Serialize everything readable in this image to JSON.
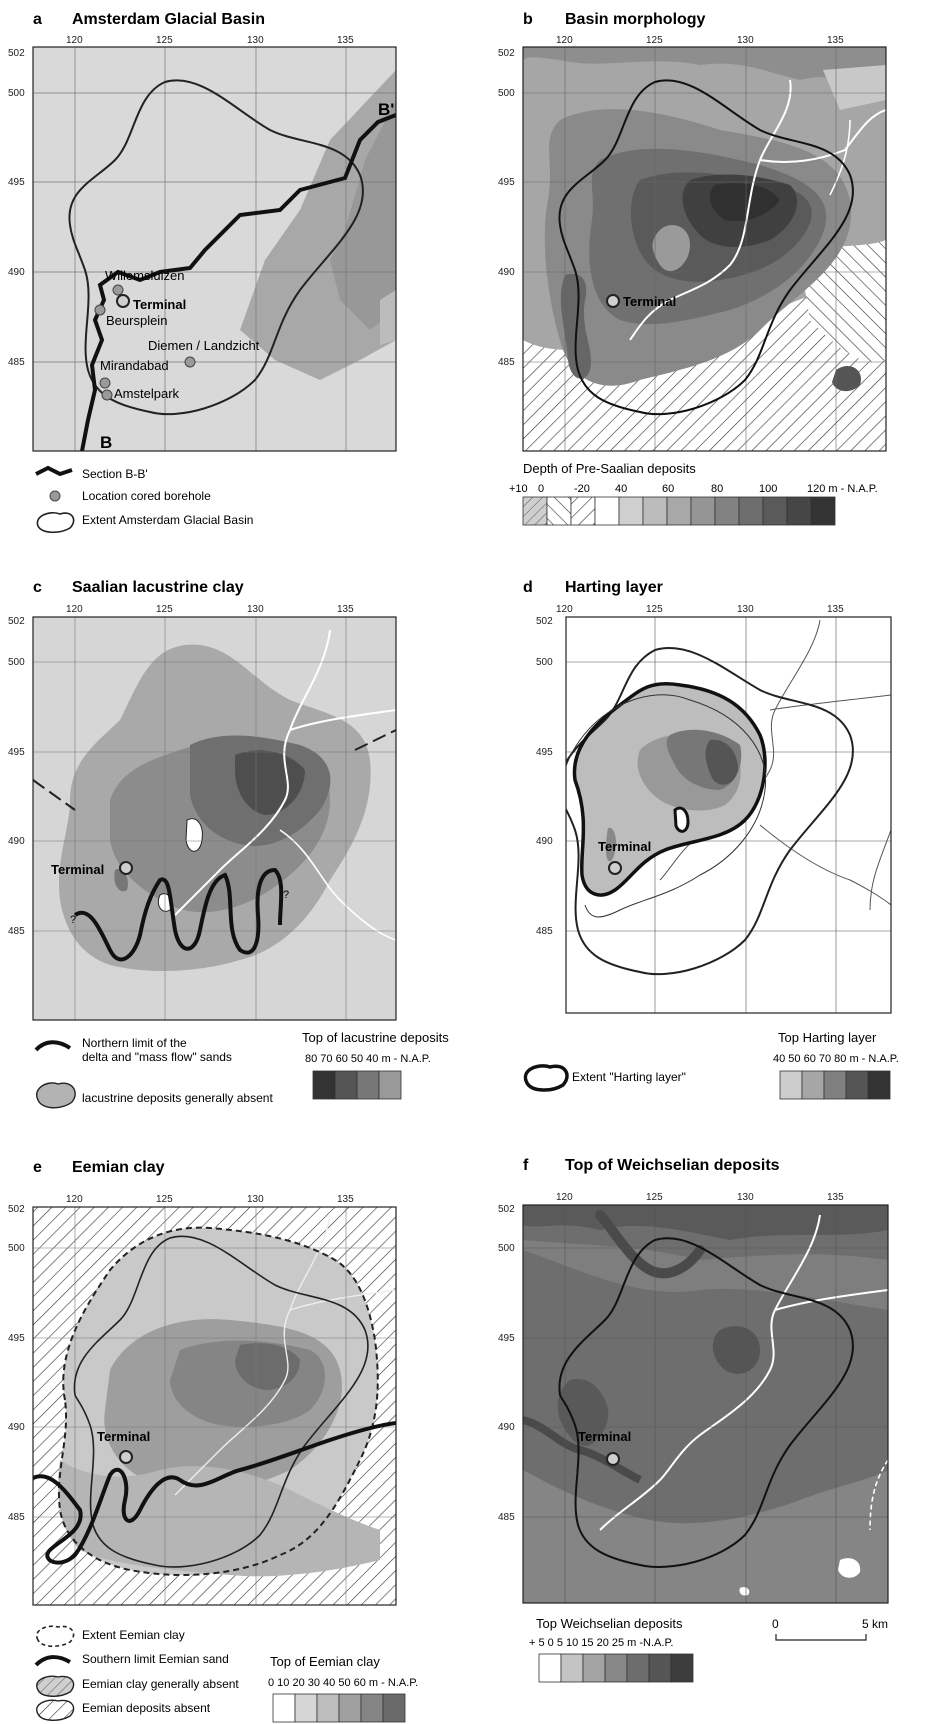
{
  "panels": {
    "a": {
      "letter": "a",
      "title": "Amsterdam Glacial Basin",
      "places": [
        "Willemsluizen",
        "Terminal",
        "Beursplein",
        "Diemen / Landzicht",
        "Mirandabad",
        "Amstelpark"
      ],
      "section_labels": [
        "B'",
        "B"
      ],
      "legend": [
        "Section B-B'",
        "Location cored borehole",
        "Extent Amsterdam Glacial Basin"
      ]
    },
    "b": {
      "letter": "b",
      "title": "Basin morphology",
      "places": [
        "Terminal"
      ],
      "legend_title": "Depth of Pre-Saalian deposits",
      "scale_labels": [
        "+10",
        "0",
        "-20",
        "40",
        "60",
        "80",
        "100",
        "120 m - N.A.P."
      ]
    },
    "c": {
      "letter": "c",
      "title": "Saalian lacustrine clay",
      "places": [
        "Terminal"
      ],
      "question_marks": [
        "?",
        "?"
      ],
      "legend": [
        "Northern limit of the",
        "delta and \"mass flow\" sands",
        "lacustrine deposits generally absent"
      ],
      "legend_title": "Top of lacustrine deposits",
      "scale_labels": "80 70 60 50 40 m - N.A.P."
    },
    "d": {
      "letter": "d",
      "title": "Harting layer",
      "places": [
        "Terminal"
      ],
      "legend": [
        "Extent \"Harting layer\""
      ],
      "legend_title": "Top Harting layer",
      "scale_labels": "40 50 60 70 80 m - N.A.P."
    },
    "e": {
      "letter": "e",
      "title": "Eemian clay",
      "places": [
        "Terminal"
      ],
      "legend": [
        "Extent Eemian clay",
        "Southern limit Eemian sand",
        "Eemian clay generally absent",
        "Eemian deposits absent"
      ],
      "legend_title": "Top of Eemian clay",
      "scale_labels": "0  10  20  30  40  50  60 m - N.A.P."
    },
    "f": {
      "letter": "f",
      "title": "Top of Weichselian deposits",
      "places": [
        "Terminal"
      ],
      "legend_title": "Top Weichselian deposits",
      "scale_labels": "+ 5   0   5  10  15  20  25 m -N.A.P.",
      "scale_bar": [
        "0",
        "5 km"
      ]
    }
  },
  "grid": {
    "x_ticks": [
      "120",
      "125",
      "130",
      "135"
    ],
    "y_ticks": [
      "502",
      "500",
      "495",
      "490",
      "485"
    ]
  },
  "colors": {
    "background_light": "#d6d6d6",
    "shade_1": "#bdbdbd",
    "shade_2": "#a4a4a4",
    "shade_3": "#8a8a8a",
    "shade_4": "#707070",
    "shade_5": "#575757",
    "shade_6": "#3e3e3e",
    "line_dark": "#1a1a1a",
    "river_white": "#ffffff"
  }
}
